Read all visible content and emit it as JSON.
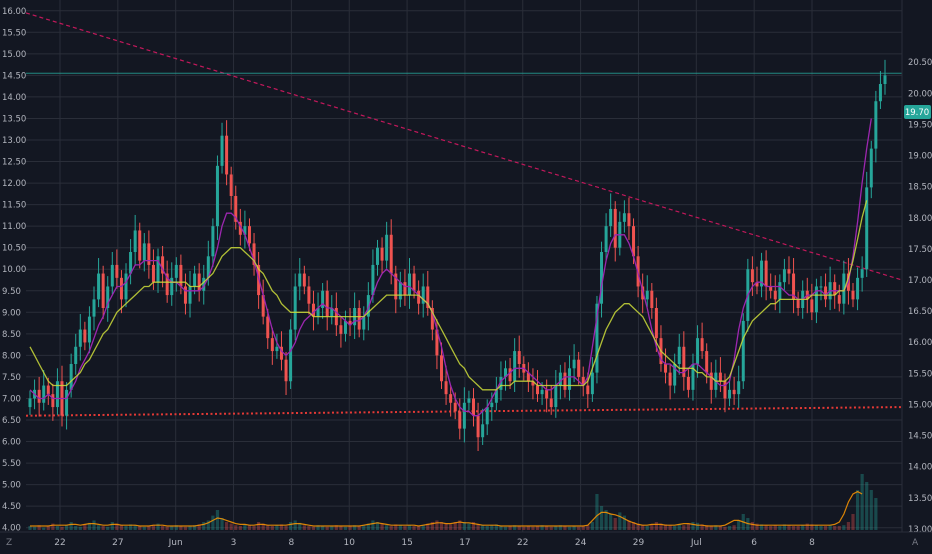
{
  "chart_data": {
    "type": "candlestick",
    "left_axis": {
      "ticks": [
        "16.00",
        "15.50",
        "15.00",
        "14.50",
        "14.00",
        "13.50",
        "13.00",
        "12.50",
        "12.00",
        "11.50",
        "11.00",
        "10.50",
        "10.00",
        "9.50",
        "9.00",
        "8.50",
        "8.00",
        "7.50",
        "7.00",
        "6.50",
        "6.00",
        "5.50",
        "5.00",
        "4.50",
        "4.00"
      ],
      "range": [
        3.9,
        16.25
      ]
    },
    "right_axis": {
      "ticks": [
        "20.50",
        "20.00",
        "19.50",
        "19.00",
        "18.50",
        "18.00",
        "17.50",
        "17.00",
        "16.50",
        "16.00",
        "15.50",
        "15.00",
        "14.50",
        "14.00",
        "13.50",
        "13.00"
      ],
      "range": [
        12.95,
        21.5
      ]
    },
    "x_labels": [
      "22",
      "27",
      "Jun",
      "3",
      "8",
      "10",
      "15",
      "17",
      "22",
      "24",
      "29",
      "Jul",
      "6",
      "8"
    ],
    "bottom_left_mark": "Z",
    "bottom_right_mark": "A",
    "price_label": {
      "text": "19.70",
      "value": 19.7,
      "color": "#26a69a"
    },
    "price_series": [
      7.0,
      7.2,
      6.9,
      7.3,
      7.1,
      6.8,
      7.4,
      6.6,
      7.2,
      7.8,
      8.2,
      8.6,
      8.3,
      8.9,
      9.3,
      9.9,
      9.1,
      9.6,
      10.1,
      9.8,
      9.3,
      9.9,
      10.4,
      10.9,
      10.2,
      10.6,
      10.1,
      9.7,
      10.3,
      9.9,
      9.4,
      9.8,
      10.1,
      9.6,
      9.2,
      9.6,
      9.9,
      9.5,
      9.8,
      10.3,
      11.0,
      12.4,
      13.1,
      12.2,
      11.7,
      11.1,
      10.8,
      11.0,
      10.6,
      10.1,
      9.4,
      8.9,
      8.4,
      8.1,
      8.2,
      7.9,
      7.4,
      8.6,
      9.6,
      9.9,
      9.6,
      9.2,
      8.9,
      9.1,
      9.5,
      8.9,
      9.1,
      8.7,
      8.5,
      8.8,
      8.7,
      9.1,
      8.6,
      8.9,
      9.4,
      10.1,
      10.5,
      10.2,
      10.8,
      9.9,
      9.3,
      9.7,
      9.4,
      9.9,
      9.5,
      9.2,
      9.6,
      9.1,
      8.6,
      8.0,
      7.4,
      7.1,
      6.9,
      6.7,
      6.3,
      6.9,
      7.0,
      6.6,
      6.1,
      6.4,
      6.8,
      6.9,
      7.2,
      7.5,
      7.7,
      7.4,
      8.1,
      7.8,
      7.6,
      7.4,
      7.3,
      7.1,
      7.2,
      7.0,
      6.8,
      7.3,
      7.6,
      7.2,
      7.7,
      7.9,
      7.5,
      7.3,
      7.1,
      7.6,
      9.2,
      10.4,
      11.0,
      11.4,
      10.5,
      11.1,
      11.3,
      11.0,
      10.3,
      9.6,
      9.3,
      9.5,
      9.1,
      8.4,
      7.8,
      7.6,
      7.3,
      7.8,
      8.2,
      7.5,
      7.2,
      7.8,
      8.4,
      8.1,
      7.6,
      7.2,
      7.6,
      7.4,
      7.0,
      7.2,
      7.1,
      7.4,
      8.8,
      10.0,
      9.7,
      9.6,
      10.2,
      9.6,
      9.5,
      9.3,
      9.7,
      10.0,
      9.9,
      9.3,
      9.1,
      9.5,
      9.3,
      9.0,
      9.6,
      9.6,
      9.3,
      9.7,
      9.4,
      9.2,
      9.9,
      9.5,
      9.3,
      9.8,
      10.0,
      11.9,
      12.8,
      13.9,
      14.3,
      14.5
    ],
    "ma_fast": [
      7.2,
      7.1,
      7.0,
      7.0,
      7.1,
      7.0,
      7.0,
      7.0,
      7.0,
      7.2,
      7.4,
      7.7,
      7.9,
      8.1,
      8.4,
      8.7,
      8.9,
      9.2,
      9.4,
      9.6,
      9.6,
      9.7,
      9.9,
      10.1,
      10.1,
      10.2,
      10.2,
      10.2,
      10.2,
      10.0,
      9.8,
      9.7,
      9.7,
      9.6,
      9.5,
      9.5,
      9.5,
      9.5,
      9.6,
      9.8,
      10.1,
      10.5,
      11.0,
      11.3,
      11.3,
      11.2,
      11.0,
      10.8,
      10.5,
      10.2,
      9.8,
      9.4,
      9.0,
      8.6,
      8.3,
      8.1,
      8.0,
      8.1,
      8.3,
      8.6,
      8.8,
      8.9,
      9.0,
      9.1,
      9.2,
      9.1,
      9.1,
      9.0,
      8.9,
      8.8,
      8.7,
      8.8,
      8.8,
      8.9,
      9.1,
      9.4,
      9.7,
      9.9,
      10.0,
      9.9,
      9.8,
      9.7,
      9.6,
      9.6,
      9.5,
      9.4,
      9.3,
      9.2,
      9.0,
      8.6,
      8.2,
      7.7,
      7.3,
      7.0,
      6.8,
      6.7,
      6.7,
      6.6,
      6.6,
      6.7,
      6.8,
      7.0,
      7.2,
      7.4,
      7.5,
      7.6,
      7.7,
      7.7,
      7.7,
      7.6,
      7.5,
      7.4,
      7.3,
      7.2,
      7.2,
      7.3,
      7.4,
      7.5,
      7.5,
      7.5,
      7.4,
      7.3,
      7.5,
      8.2,
      8.9,
      9.6,
      10.2,
      10.6,
      10.8,
      10.8,
      10.8,
      10.6,
      10.3,
      9.9,
      9.5,
      9.1,
      8.6,
      8.2,
      7.9,
      7.8,
      7.8,
      7.7,
      7.6,
      7.6,
      7.7,
      7.8,
      7.8,
      7.7,
      7.6,
      7.5,
      7.4,
      7.3,
      7.3,
      7.4,
      7.9,
      8.6,
      9.1,
      9.4,
      9.6,
      9.7,
      9.7,
      9.6,
      9.6,
      9.6,
      9.6,
      9.5,
      9.4,
      9.4,
      9.3,
      9.3,
      9.4,
      9.4,
      9.5,
      9.5,
      9.4,
      9.5,
      9.5,
      9.5,
      9.5,
      9.7,
      10.3,
      11.1,
      12.0,
      12.8,
      13.5
    ],
    "ma_slow": [
      8.2,
      8.0,
      7.8,
      7.6,
      7.4,
      7.3,
      7.3,
      7.3,
      7.3,
      7.4,
      7.5,
      7.6,
      7.8,
      7.9,
      8.1,
      8.3,
      8.5,
      8.6,
      8.8,
      9.0,
      9.1,
      9.2,
      9.3,
      9.4,
      9.5,
      9.6,
      9.6,
      9.7,
      9.7,
      9.7,
      9.7,
      9.7,
      9.7,
      9.7,
      9.7,
      9.6,
      9.6,
      9.6,
      9.7,
      9.8,
      9.9,
      10.1,
      10.3,
      10.4,
      10.5,
      10.5,
      10.5,
      10.4,
      10.3,
      10.2,
      10.0,
      9.9,
      9.7,
      9.5,
      9.4,
      9.2,
      9.1,
      9.0,
      9.0,
      9.0,
      9.0,
      9.0,
      8.9,
      8.9,
      8.9,
      8.9,
      8.9,
      8.9,
      8.9,
      8.9,
      8.9,
      8.9,
      8.9,
      8.9,
      9.0,
      9.1,
      9.2,
      9.3,
      9.4,
      9.4,
      9.4,
      9.4,
      9.4,
      9.4,
      9.4,
      9.4,
      9.3,
      9.2,
      9.0,
      8.8,
      8.6,
      8.4,
      8.2,
      8.0,
      7.8,
      7.7,
      7.5,
      7.4,
      7.3,
      7.2,
      7.2,
      7.2,
      7.2,
      7.3,
      7.3,
      7.3,
      7.4,
      7.4,
      7.4,
      7.4,
      7.4,
      7.3,
      7.3,
      7.3,
      7.3,
      7.3,
      7.3,
      7.3,
      7.3,
      7.3,
      7.3,
      7.3,
      7.4,
      7.7,
      8.0,
      8.3,
      8.6,
      8.8,
      9.0,
      9.1,
      9.2,
      9.2,
      9.1,
      9.0,
      8.9,
      8.7,
      8.5,
      8.3,
      8.1,
      8.0,
      7.9,
      7.8,
      7.7,
      7.7,
      7.7,
      7.7,
      7.6,
      7.6,
      7.5,
      7.5,
      7.4,
      7.4,
      7.4,
      7.5,
      7.8,
      8.1,
      8.4,
      8.6,
      8.8,
      8.9,
      9.0,
      9.1,
      9.2,
      9.2,
      9.3,
      9.3,
      9.3,
      9.3,
      9.3,
      9.3,
      9.3,
      9.4,
      9.4,
      9.4,
      9.4,
      9.4,
      9.4,
      9.5,
      9.5,
      9.8,
      10.2,
      10.7,
      11.2,
      11.6
    ],
    "volume": [
      0.05,
      0.04,
      0.06,
      0.03,
      0.05,
      0.08,
      0.05,
      0.04,
      0.06,
      0.1,
      0.05,
      0.04,
      0.07,
      0.09,
      0.12,
      0.06,
      0.05,
      0.04,
      0.1,
      0.08,
      0.06,
      0.05,
      0.07,
      0.06,
      0.05,
      0.04,
      0.05,
      0.06,
      0.08,
      0.05,
      0.04,
      0.05,
      0.06,
      0.05,
      0.04,
      0.05,
      0.06,
      0.07,
      0.1,
      0.12,
      0.18,
      0.25,
      0.15,
      0.1,
      0.08,
      0.06,
      0.05,
      0.07,
      0.06,
      0.05,
      0.1,
      0.08,
      0.06,
      0.05,
      0.06,
      0.07,
      0.05,
      0.1,
      0.12,
      0.09,
      0.06,
      0.05,
      0.04,
      0.06,
      0.05,
      0.04,
      0.05,
      0.06,
      0.05,
      0.04,
      0.05,
      0.06,
      0.05,
      0.06,
      0.08,
      0.12,
      0.1,
      0.08,
      0.06,
      0.05,
      0.07,
      0.06,
      0.05,
      0.06,
      0.05,
      0.05,
      0.06,
      0.08,
      0.1,
      0.12,
      0.1,
      0.08,
      0.07,
      0.1,
      0.12,
      0.1,
      0.08,
      0.1,
      0.07,
      0.06,
      0.05,
      0.06,
      0.07,
      0.05,
      0.04,
      0.05,
      0.06,
      0.05,
      0.04,
      0.05,
      0.04,
      0.05,
      0.06,
      0.05,
      0.04,
      0.05,
      0.06,
      0.05,
      0.04,
      0.05,
      0.04,
      0.05,
      0.06,
      0.1,
      0.45,
      0.3,
      0.25,
      0.2,
      0.15,
      0.22,
      0.18,
      0.12,
      0.1,
      0.08,
      0.06,
      0.05,
      0.07,
      0.1,
      0.08,
      0.07,
      0.06,
      0.05,
      0.07,
      0.06,
      0.08,
      0.1,
      0.09,
      0.07,
      0.06,
      0.05,
      0.06,
      0.05,
      0.04,
      0.05,
      0.06,
      0.12,
      0.2,
      0.15,
      0.1,
      0.08,
      0.07,
      0.06,
      0.05,
      0.06,
      0.05,
      0.07,
      0.06,
      0.05,
      0.05,
      0.06,
      0.08,
      0.07,
      0.06,
      0.05,
      0.05,
      0.06,
      0.05,
      0.05,
      0.06,
      0.1,
      0.2,
      0.5,
      0.7,
      0.6,
      0.5,
      0.4
    ],
    "volume_ma": [
      0.05,
      0.05,
      0.05,
      0.05,
      0.05,
      0.06,
      0.06,
      0.06,
      0.06,
      0.07,
      0.07,
      0.06,
      0.07,
      0.08,
      0.08,
      0.07,
      0.06,
      0.06,
      0.07,
      0.07,
      0.06,
      0.06,
      0.06,
      0.06,
      0.05,
      0.05,
      0.05,
      0.06,
      0.06,
      0.06,
      0.05,
      0.05,
      0.05,
      0.05,
      0.05,
      0.05,
      0.05,
      0.06,
      0.07,
      0.09,
      0.12,
      0.15,
      0.14,
      0.12,
      0.1,
      0.08,
      0.07,
      0.07,
      0.06,
      0.06,
      0.07,
      0.07,
      0.06,
      0.06,
      0.06,
      0.06,
      0.06,
      0.07,
      0.08,
      0.08,
      0.07,
      0.06,
      0.05,
      0.05,
      0.05,
      0.05,
      0.05,
      0.05,
      0.05,
      0.05,
      0.05,
      0.05,
      0.05,
      0.06,
      0.07,
      0.08,
      0.09,
      0.08,
      0.07,
      0.06,
      0.06,
      0.06,
      0.06,
      0.06,
      0.06,
      0.05,
      0.06,
      0.07,
      0.08,
      0.09,
      0.09,
      0.08,
      0.08,
      0.09,
      0.1,
      0.09,
      0.09,
      0.08,
      0.07,
      0.06,
      0.06,
      0.06,
      0.06,
      0.05,
      0.05,
      0.05,
      0.05,
      0.05,
      0.05,
      0.05,
      0.05,
      0.05,
      0.05,
      0.05,
      0.05,
      0.05,
      0.05,
      0.05,
      0.05,
      0.05,
      0.05,
      0.05,
      0.06,
      0.12,
      0.18,
      0.22,
      0.22,
      0.2,
      0.19,
      0.17,
      0.14,
      0.11,
      0.09,
      0.07,
      0.06,
      0.06,
      0.07,
      0.07,
      0.07,
      0.06,
      0.06,
      0.06,
      0.07,
      0.08,
      0.08,
      0.07,
      0.06,
      0.06,
      0.05,
      0.05,
      0.05,
      0.05,
      0.06,
      0.09,
      0.12,
      0.12,
      0.1,
      0.08,
      0.07,
      0.06,
      0.06,
      0.06,
      0.06,
      0.06,
      0.06,
      0.06,
      0.06,
      0.06,
      0.06,
      0.06,
      0.06,
      0.06,
      0.06,
      0.06,
      0.06,
      0.06,
      0.07,
      0.1,
      0.2,
      0.35,
      0.45,
      0.48,
      0.45
    ],
    "trendline": {
      "style": "dashed",
      "color": "#c2185b",
      "from": 15.95,
      "to": 9.75
    },
    "support_line": {
      "style": "dotted",
      "color": "#e53935",
      "from": 6.6,
      "to": 6.8
    },
    "horizontal_line": {
      "value": 14.55,
      "color": "#26a69a"
    },
    "grid": true
  }
}
